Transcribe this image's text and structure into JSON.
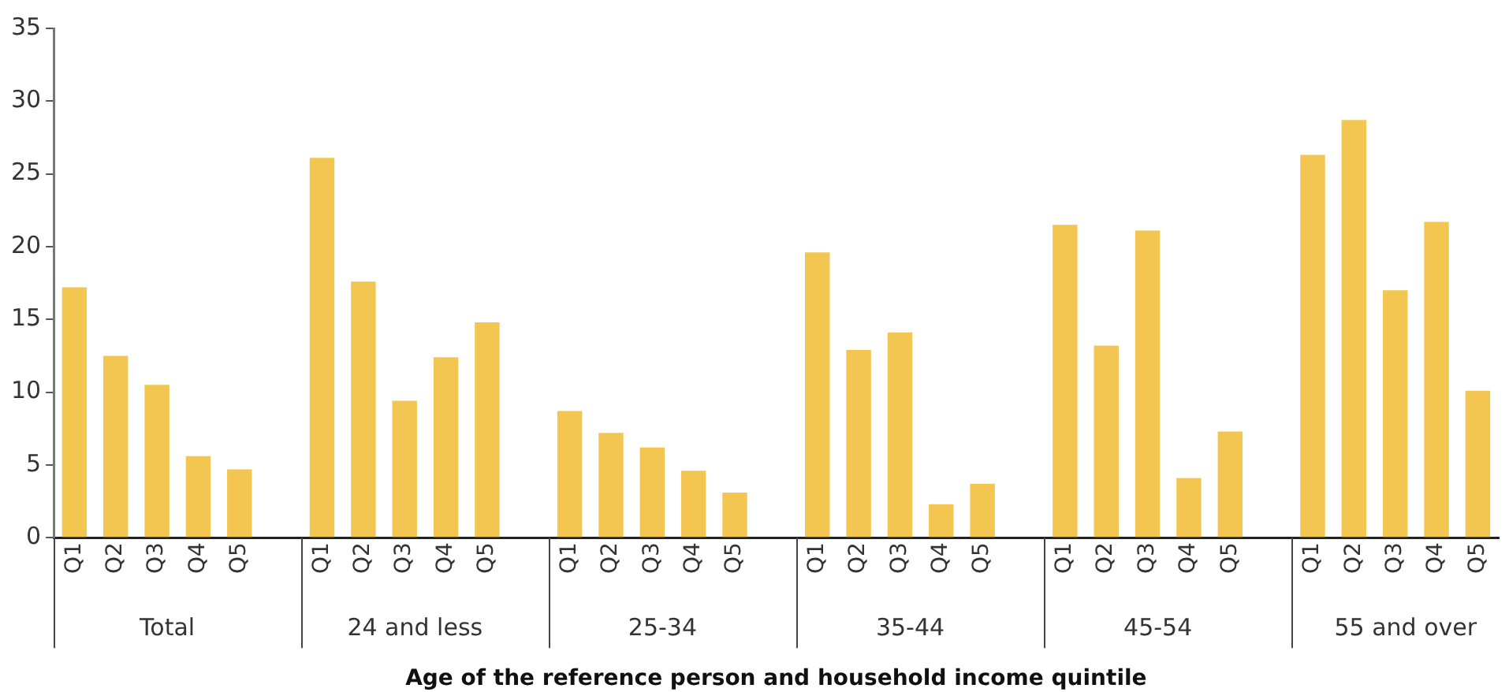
{
  "chart_data": {
    "type": "bar",
    "xlabel": "Age of the reference person and household income quintile",
    "categories": [
      "Q1",
      "Q2",
      "Q3",
      "Q4",
      "Q5",
      null,
      "Q1",
      "Q2",
      "Q3",
      "Q4",
      "Q5",
      null,
      "Q1",
      "Q2",
      "Q3",
      "Q4",
      "Q5",
      null,
      "Q1",
      "Q2",
      "Q3",
      "Q4",
      "Q5",
      null,
      "Q1",
      "Q2",
      "Q3",
      "Q4",
      "Q5",
      null,
      "Q1",
      "Q2",
      "Q3",
      "Q4",
      "Q5"
    ],
    "values": [
      17.2,
      12.5,
      10.5,
      5.6,
      4.7,
      null,
      26.1,
      17.6,
      9.4,
      12.4,
      14.8,
      null,
      8.7,
      7.2,
      6.2,
      4.6,
      3.1,
      null,
      19.6,
      12.9,
      14.1,
      2.3,
      3.7,
      null,
      21.5,
      13.2,
      21.1,
      4.1,
      7.3,
      null,
      26.3,
      28.7,
      17.0,
      21.7,
      10.1
    ],
    "color": "#f2c650",
    "annotations": [
      "Total",
      "24 and less",
      "25-34",
      "35-44",
      "45-54",
      "55 and over"
    ],
    "ylim": [
      0,
      35
    ],
    "yticks": [
      0,
      5,
      10,
      15,
      20,
      25,
      30,
      35
    ],
    "grid": false,
    "legend": false
  }
}
